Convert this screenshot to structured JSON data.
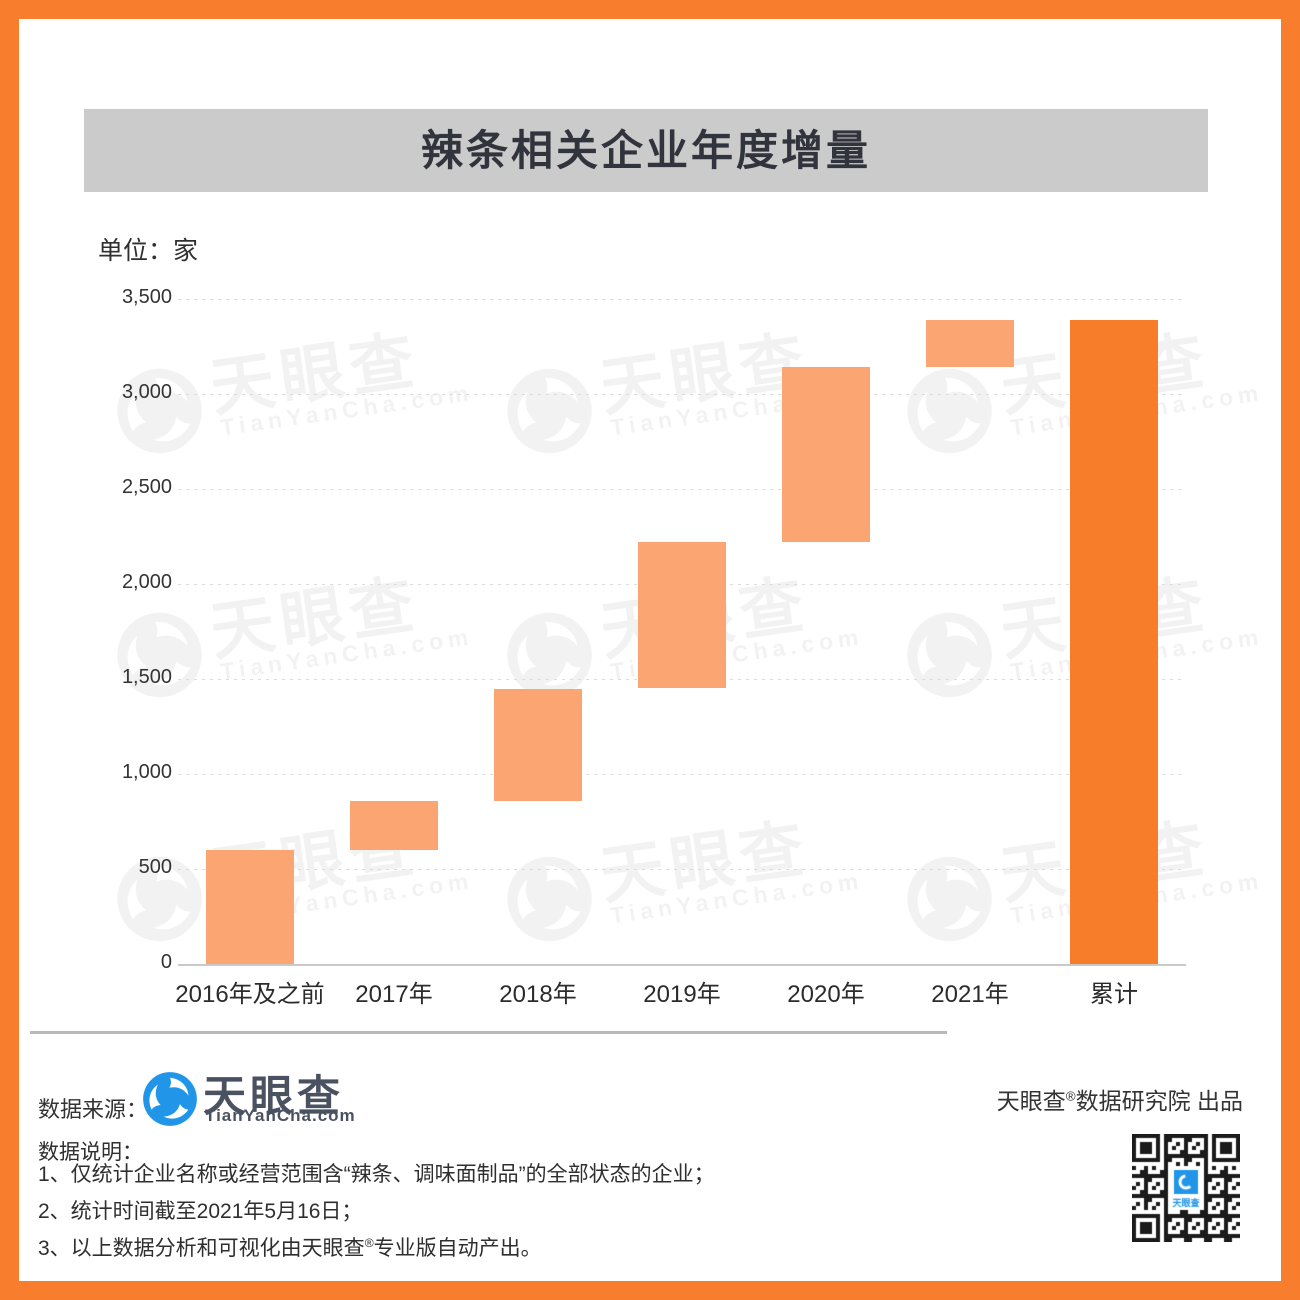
{
  "page": {
    "title": "辣条相关企业年度增量"
  },
  "chart_data": {
    "type": "bar",
    "variant": "waterfall",
    "title": "辣条相关企业年度增量",
    "unit_label": "单位：家",
    "categories": [
      "2016年及之前",
      "2017年",
      "2018年",
      "2019年",
      "2020年",
      "2021年",
      "累计"
    ],
    "increments": [
      600,
      260,
      590,
      770,
      920,
      250,
      3390
    ],
    "segment_start": [
      0,
      600,
      860,
      1450,
      2220,
      3140,
      0
    ],
    "segment_end": [
      600,
      860,
      1450,
      2220,
      3140,
      3390,
      3390
    ],
    "total_flags": [
      false,
      false,
      false,
      false,
      false,
      false,
      true
    ],
    "cumulative_total": 3390,
    "ylim": [
      0,
      3500
    ],
    "ytick_values": [
      0,
      500,
      1000,
      1500,
      2000,
      2500,
      3000,
      3500
    ],
    "ytick_labels": [
      "0",
      "500",
      "1,000",
      "1,500",
      "2,000",
      "2,500",
      "3,000",
      "3,500"
    ],
    "bar_color": "#FBA573",
    "total_bar_color": "#F87D2B",
    "grid": "horizontal-dashed",
    "legend": "none"
  },
  "watermark": {
    "cjk": "天眼查",
    "latin": "TianYanCha.com"
  },
  "footer": {
    "source_label": "数据来源：",
    "logo": {
      "cjk": "天眼查",
      "domain": "TianYanCha.com"
    },
    "producer": {
      "prefix": "天眼查",
      "reg": "®",
      "suffix": "数据研究院 出品"
    },
    "notes_title": "数据说明：",
    "notes": [
      {
        "prefix": "1、仅统计企业名称或经营范围含“辣条、调味面制品”的全部状态的企业；",
        "reg": "",
        "suffix": ""
      },
      {
        "prefix": "2、统计时间截至2021年5月16日；",
        "reg": "",
        "suffix": ""
      },
      {
        "prefix": "3、以上数据分析和可视化由天眼查",
        "reg": "®",
        "suffix": "专业版自动产出。"
      }
    ]
  },
  "colors": {
    "accent_orange": "#F87E2E",
    "bar_light": "#FBA573",
    "bar_total": "#F87D2B",
    "banner_gray": "#CBCBCB",
    "logo_blue": "#2196E8",
    "logo_slate": "#4A5160"
  }
}
